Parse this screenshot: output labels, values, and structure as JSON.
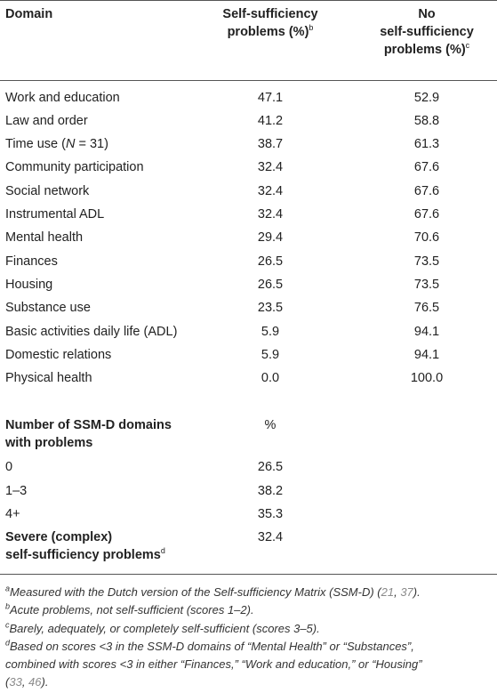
{
  "header": {
    "col1": "Domain",
    "col2_line1": "Self-sufficiency",
    "col2_line2": "problems (%)",
    "col2_sup": "b",
    "col3_line1": "No",
    "col3_line2": "self-sufficiency",
    "col3_line3": "problems (%)",
    "col3_sup": "c"
  },
  "rows": [
    {
      "domain": "Work and education",
      "problems": "47.1",
      "no_problems": "52.9"
    },
    {
      "domain": "Law and order",
      "problems": "41.2",
      "no_problems": "58.8"
    },
    {
      "domain_pre": "Time use (",
      "domain_ital": "N",
      "domain_post": " = 31)",
      "problems": "38.7",
      "no_problems": "61.3"
    },
    {
      "domain": "Community participation",
      "problems": "32.4",
      "no_problems": "67.6"
    },
    {
      "domain": "Social network",
      "problems": "32.4",
      "no_problems": "67.6"
    },
    {
      "domain": "Instrumental ADL",
      "problems": "32.4",
      "no_problems": "67.6"
    },
    {
      "domain": "Mental health",
      "problems": "29.4",
      "no_problems": "70.6"
    },
    {
      "domain": "Finances",
      "problems": "26.5",
      "no_problems": "73.5"
    },
    {
      "domain": "Housing",
      "problems": "26.5",
      "no_problems": "73.5"
    },
    {
      "domain": "Substance use",
      "problems": "23.5",
      "no_problems": "76.5"
    },
    {
      "domain": "Basic activities daily life (ADL)",
      "problems": "5.9",
      "no_problems": "94.1"
    },
    {
      "domain": "Domestic relations",
      "problems": "5.9",
      "no_problems": "94.1"
    },
    {
      "domain": "Physical health",
      "problems": "0.0",
      "no_problems": "100.0"
    }
  ],
  "section2": {
    "label_line1": "Number of SSM-D domains",
    "label_line2": "with problems",
    "pct_header": "%",
    "rows": [
      {
        "label": "0",
        "value": "26.5"
      },
      {
        "label": "1–3",
        "value": "38.2"
      },
      {
        "label": "4+",
        "value": "35.3"
      }
    ],
    "severe_line1": "Severe (complex)",
    "severe_line2": "self-sufficiency problems",
    "severe_sup": "d",
    "severe_value": "32.4"
  },
  "footnotes": {
    "a_sup": "a",
    "a_text": "Measured with the Dutch version of the Self-sufficiency Matrix (SSM-D) (",
    "a_ref1": "21",
    "a_ref_sep": ", ",
    "a_ref2": "37",
    "a_end": ").",
    "b_sup": "b",
    "b_text": "Acute problems, not self-sufficient (scores 1–2).",
    "c_sup": "c",
    "c_text": "Barely, adequately, or completely self-sufficient (scores 3–5).",
    "d_sup": "d",
    "d_line1": "Based on scores <3 in the SSM-D domains of “Mental Health” or “Substances”,",
    "d_line2": "combined with scores <3 in either “Finances,” “Work and education,” or “Housing”",
    "d_line3_pre": "(",
    "d_ref1": "33",
    "d_ref_sep": ", ",
    "d_ref2": "46",
    "d_line3_end": ")."
  }
}
